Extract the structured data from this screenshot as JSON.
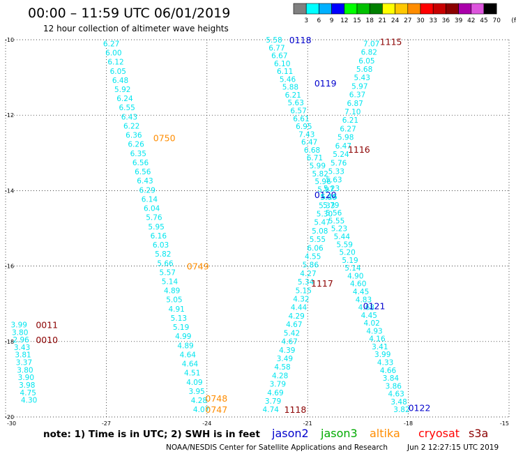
{
  "header": {
    "title": "00:00 – 11:59 UTC 06/01/2019",
    "subtitle": "12 hour collection of altimeter wave heights"
  },
  "colorbar": {
    "colors": [
      "#808080",
      "#00ffff",
      "#00b0ff",
      "#0000ff",
      "#00ff00",
      "#00c000",
      "#008000",
      "#ffff00",
      "#ffc800",
      "#ff8c00",
      "#ff0000",
      "#c80000",
      "#8b0000",
      "#aa00aa",
      "#dd55dd",
      "#000000"
    ],
    "labels": [
      "3",
      "6",
      "9",
      "12",
      "15",
      "18",
      "21",
      "24",
      "27",
      "30",
      "33",
      "36",
      "39",
      "42",
      "45",
      "70",
      "(ft)"
    ]
  },
  "footer": {
    "note": "note: 1) Time is in UTC; 2) SWH is in feet",
    "satellites": [
      {
        "name": "jason2",
        "color": "#0000cc"
      },
      {
        "name": "jason3",
        "color": "#00aa00"
      },
      {
        "name": "altika",
        "color": "#ff8c00"
      },
      {
        "name": "cryosat",
        "color": "#ff0000"
      },
      {
        "name": "s3a",
        "color": "#8b0000"
      }
    ],
    "credit": "NOAA/NESDIS Center for Satellite Applications and Research",
    "timestamp": "Jun  2 12:27:15 UTC 2019"
  },
  "chart_data": {
    "type": "scatter",
    "title": "00:00 – 11:59 UTC 06/01/2019",
    "subtitle": "12 hour collection of altimeter wave heights",
    "units": "ft",
    "xlim": [
      -30,
      -15
    ],
    "ylim": [
      -20,
      -10
    ],
    "xticks": [
      -30,
      -27,
      -24,
      -21,
      -18,
      -15
    ],
    "yticks": [
      -10,
      -12,
      -14,
      -16,
      -18,
      -20
    ],
    "xtick_labels": [
      "-30",
      "-27",
      "-24",
      "-21",
      "-18",
      "-15"
    ],
    "ytick_labels": [
      "-10",
      "-12",
      "-14",
      "-16",
      "-18",
      "-20"
    ],
    "grid": true,
    "value_color": "#00e5ee",
    "tracks": [
      {
        "satellite": "altika",
        "color": "#ff8c00",
        "start": [
          -26.85,
          -10.1
        ],
        "end": [
          -24.17,
          -19.8
        ],
        "values": [
          "6.27",
          "6.00",
          "6.12",
          "6.05",
          "6.48",
          "5.92",
          "6.24",
          "6.55",
          "6.43",
          "6.22",
          "6.36",
          "6.26",
          "6.35",
          "6.56",
          "6.56",
          "6.43",
          "6.29",
          "6.14",
          "6.04",
          "5.76",
          "5.95",
          "6.16",
          "6.03",
          "5.82",
          "5.66",
          "5.57",
          "5.14",
          "4.89",
          "5.05",
          "4.91",
          "5.13",
          "5.19",
          "4.99",
          "4.89",
          "4.64",
          "4.64",
          "4.51",
          "4.09",
          "3.95",
          "4.28",
          "4.07"
        ],
        "times": [
          {
            "label": "0750",
            "at": [
              -25.6,
              -12.6
            ]
          },
          {
            "label": "0749",
            "at": [
              -24.6,
              -16.0
            ]
          },
          {
            "label": "0748",
            "at": [
              -24.05,
              -19.5
            ]
          },
          {
            "label": "0747",
            "at": [
              -24.05,
              -19.8
            ]
          }
        ]
      },
      {
        "satellite": "jason2",
        "color": "#0000cc",
        "start": [
          -22.0,
          -10.0
        ],
        "end": [
          -18.2,
          -19.8
        ],
        "values": [
          "5.58",
          "6.77",
          "6.67",
          "6.10",
          "6.11",
          "5.46",
          "5.88",
          "6.21",
          "5.63",
          "6.57",
          "6.61",
          "6.95",
          "7.43",
          "6.47",
          "6.68",
          "6.71",
          "5.99",
          "5.82",
          "5.96",
          "5.97",
          "5.86",
          "5.79",
          "5.56",
          "5.55",
          "5.23",
          "5.44",
          "5.59",
          "5.20",
          "5.19",
          "5.14",
          "4.90",
          "4.60",
          "4.45",
          "4.83",
          "4.68",
          "4.45",
          "4.02",
          "4.93",
          "4.16",
          "3.41",
          "3.99",
          "4.33",
          "4.66",
          "3.84",
          "3.86",
          "4.63",
          "3.48",
          "3.82"
        ],
        "times": [
          {
            "label": "0118",
            "at": [
              -21.55,
              -10.0
            ]
          },
          {
            "label": "0119",
            "at": [
              -20.8,
              -11.15
            ]
          },
          {
            "label": "0120",
            "at": [
              -20.8,
              -14.1
            ]
          },
          {
            "label": "0121",
            "at": [
              -19.35,
              -17.05
            ]
          },
          {
            "label": "0122",
            "at": [
              -18.0,
              -19.75
            ]
          }
        ]
      },
      {
        "satellite": "s3a",
        "color": "#8b0000",
        "start": [
          -19.1,
          -10.1
        ],
        "end": [
          -22.1,
          -19.8
        ],
        "values": [
          "7.07",
          "6.82",
          "6.05",
          "5.68",
          "5.43",
          "5.97",
          "6.37",
          "6.87",
          "7.10",
          "6.21",
          "6.27",
          "5.98",
          "6.47",
          "5.24",
          "5.76",
          "5.33",
          "5.63",
          "5.23",
          "5.15",
          "5.33",
          "5.30",
          "5.47",
          "5.08",
          "5.55",
          "6.06",
          "4.55",
          "5.86",
          "4.27",
          "5.34",
          "5.15",
          "4.32",
          "4.44",
          "4.29",
          "4.67",
          "5.42",
          "4.67",
          "4.39",
          "3.49",
          "4.58",
          "4.28",
          "3.79",
          "4.69",
          "3.79",
          "4.74"
        ],
        "times": [
          {
            "label": "1115",
            "at": [
              -18.85,
              -10.05
            ]
          },
          {
            "label": "1116",
            "at": [
              -19.8,
              -12.9
            ]
          },
          {
            "label": "1117",
            "at": [
              -20.9,
              -16.45
            ]
          },
          {
            "label": "1118",
            "at": [
              -21.7,
              -19.8
            ]
          }
        ]
      },
      {
        "satellite": "s3a",
        "color": "#8b0000",
        "start": [
          -29.6,
          -17.55
        ],
        "end": [
          -29.3,
          -19.55
        ],
        "values": [
          "3.99",
          "3.80",
          "2.96",
          "3.43",
          "3.81",
          "3.37",
          "3.80",
          "3.90",
          "3.98",
          "4.75",
          "4.30"
        ],
        "times": [
          {
            "label": "0011",
            "at": [
              -29.1,
              -17.55
            ]
          },
          {
            "label": "0010",
            "at": [
              -29.1,
              -17.95
            ]
          }
        ]
      }
    ]
  }
}
